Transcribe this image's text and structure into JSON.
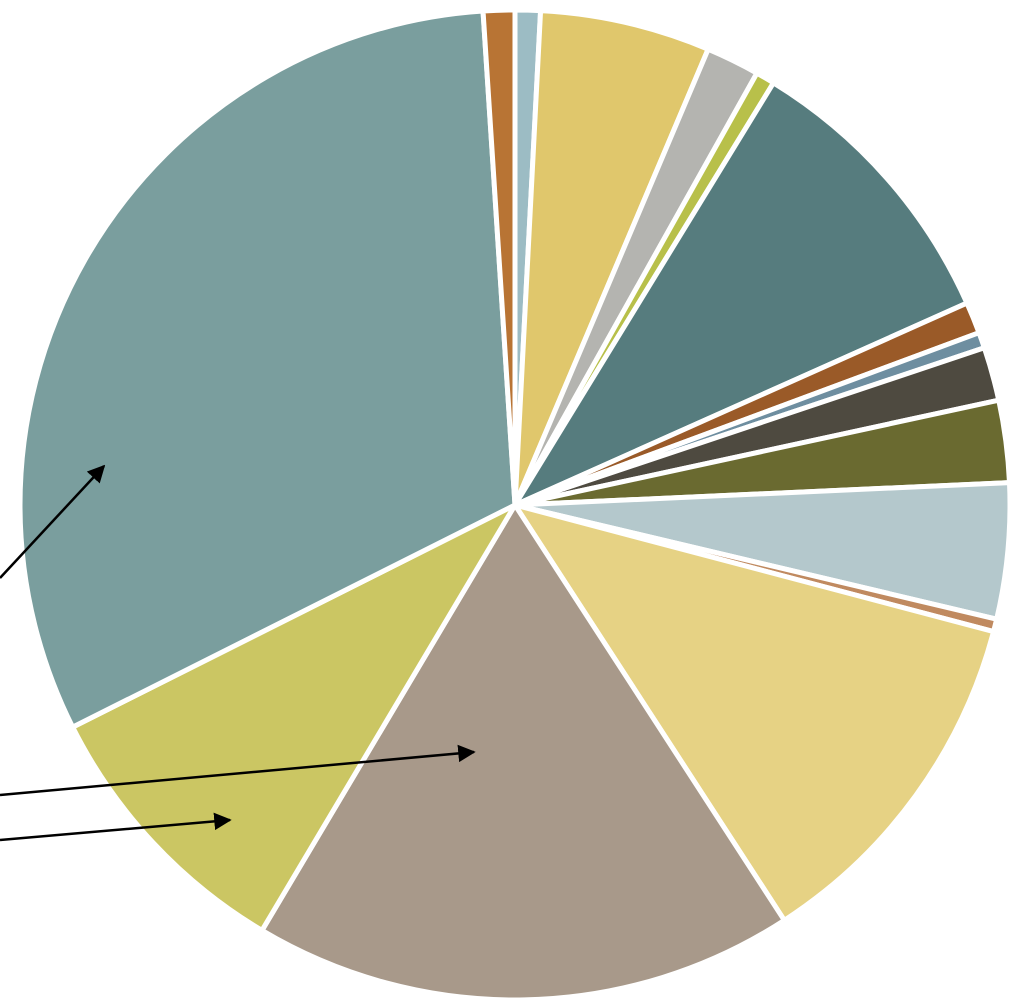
{
  "chart_data": {
    "type": "pie",
    "values": [
      0.8,
      5.4,
      1.7,
      0.6,
      9.3,
      1,
      0.5,
      1.7,
      2.6,
      4.3,
      0.4,
      11.4,
      17.2,
      8.8,
      30.5,
      1
    ],
    "colors": [
      "#9cbcc4",
      "#e0c76c",
      "#b4b4b0",
      "#b8c04a",
      "#567c7e",
      "#9a5a28",
      "#6e8ea0",
      "#4e4a40",
      "#6a6a30",
      "#b4c8cc",
      "#c08a60",
      "#e6d284",
      "#a8998a",
      "#cbc663",
      "#7a9e9e",
      "#b87434"
    ]
  }
}
